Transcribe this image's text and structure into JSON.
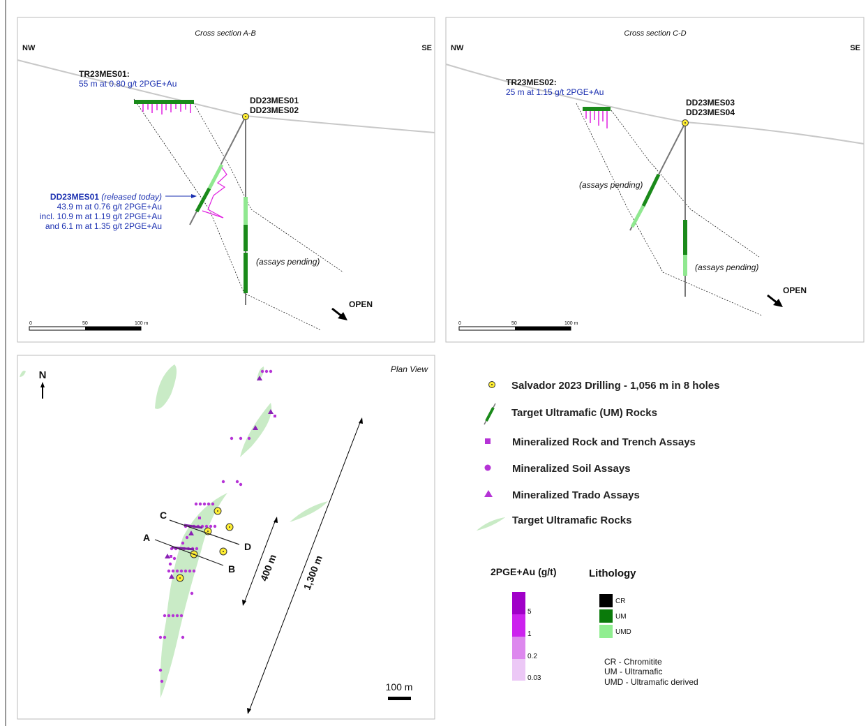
{
  "cross_sections": [
    {
      "title": "Cross section A-B",
      "left": "NW",
      "right": "SE",
      "trench": {
        "name": "TR23MES01:",
        "result": "55 m at 0.80 g/t 2PGE+Au"
      },
      "holes": [
        "DD23MES01",
        "DD23MES02"
      ],
      "callout": {
        "hole": "DD23MES01",
        "note": "(released today)",
        "lines": [
          "43.9 m at 0.76 g/t 2PGE+Au",
          "incl. 10.9 m at 1.19 g/t 2PGE+Au",
          "and 6.1 m at 1.35 g/t 2PGE+Au"
        ]
      },
      "pending": [
        "(assays pending)"
      ],
      "open": "OPEN",
      "scale": [
        "0",
        "50",
        "100 m"
      ]
    },
    {
      "title": "Cross section C-D",
      "left": "NW",
      "right": "SE",
      "trench": {
        "name": "TR23MES02:",
        "result": "25 m at 1.15 g/t 2PGE+Au"
      },
      "holes": [
        "DD23MES03",
        "DD23MES04"
      ],
      "pending": [
        "(assays pending)",
        "(assays pending)"
      ],
      "open": "OPEN",
      "scale": [
        "0",
        "50",
        "100 m"
      ]
    }
  ],
  "plan_view": {
    "title": "Plan View",
    "north": "N",
    "section_labels": [
      "A",
      "B",
      "C",
      "D"
    ],
    "distances": [
      "400 m",
      "1,300 m"
    ],
    "scale": "100 m"
  },
  "legend": {
    "items": [
      "Salvador 2023 Drilling - 1,056 m in 8 holes",
      "Target Ultramafic (UM) Rocks",
      "Mineralized Rock and Trench Assays",
      "Mineralized Soil Assays",
      "Mineralized Trado Assays",
      "Target Ultramafic Rocks"
    ],
    "grade_title": "2PGE+Au (g/t)",
    "grade_ticks": [
      "5",
      "1",
      "0.2",
      "0.03"
    ],
    "lithology_title": "Lithology",
    "lithology": [
      "CR",
      "UM",
      "UMD"
    ],
    "abbreviations": [
      "CR - Chromitite",
      "UM - Ultramafic",
      "UMD - Ultramafic derived"
    ]
  }
}
